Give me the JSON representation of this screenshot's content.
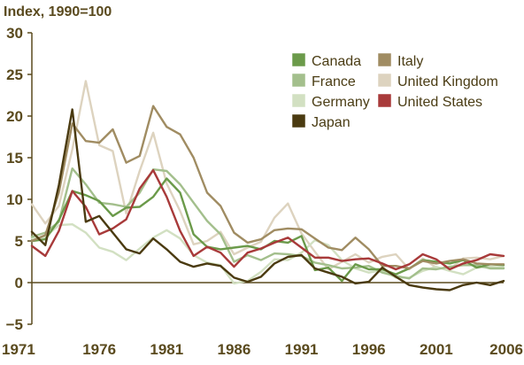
{
  "chart_data": {
    "type": "line",
    "title": "Index, 1990=100",
    "xlabel": "",
    "ylabel": "",
    "xlim": [
      1971,
      2006
    ],
    "ylim": [
      -5,
      30
    ],
    "x": [
      1971,
      1972,
      1973,
      1974,
      1975,
      1976,
      1977,
      1978,
      1979,
      1980,
      1981,
      1982,
      1983,
      1984,
      1985,
      1986,
      1987,
      1988,
      1989,
      1990,
      1991,
      1992,
      1993,
      1994,
      1995,
      1996,
      1997,
      1998,
      1999,
      2000,
      2001,
      2002,
      2003,
      2004,
      2005,
      2006
    ],
    "x_ticks": [
      1971,
      1976,
      1981,
      1986,
      1991,
      1996,
      2001,
      2006
    ],
    "y_ticks": [
      -5,
      0,
      5,
      10,
      15,
      20,
      25,
      30
    ],
    "grid": false,
    "legend_position": "top-right",
    "series": [
      {
        "name": "Canada",
        "color": "#6b9a4a",
        "values": [
          5,
          5.2,
          7.5,
          11,
          10.5,
          9.8,
          8,
          9,
          9.1,
          10.3,
          12.5,
          10.8,
          5.8,
          4.3,
          4,
          4.2,
          4.4,
          4,
          5,
          4.8,
          5.6,
          1.5,
          1.8,
          0.2,
          2.2,
          1.6,
          1.6,
          1,
          1.7,
          2.7,
          2.5,
          2.3,
          2.7,
          1.8,
          2.2,
          2.1
        ]
      },
      {
        "name": "France",
        "color": "#a3bf8c",
        "values": [
          5.5,
          6,
          7.3,
          13.7,
          11.8,
          9.6,
          9.4,
          9.1,
          10.8,
          13.6,
          13.4,
          11.8,
          9.6,
          7.4,
          5.8,
          2.5,
          3.3,
          2.7,
          3.5,
          3.4,
          3.2,
          2.4,
          2.1,
          1.7,
          1.8,
          2,
          1.2,
          0.8,
          0.5,
          1.7,
          1.6,
          1.9,
          2.1,
          2.1,
          1.7,
          1.7
        ]
      },
      {
        "name": "Germany",
        "color": "#d2e0c2",
        "values": [
          5.3,
          5.5,
          6.9,
          7,
          6,
          4.2,
          3.7,
          2.7,
          4.1,
          5.4,
          6.3,
          5.3,
          3.3,
          2.4,
          2.1,
          -0.1,
          0.2,
          1.3,
          2.8,
          2.7,
          3.6,
          5.1,
          4.5,
          2.7,
          1.7,
          1.2,
          1.5,
          0.6,
          0.6,
          1.4,
          1.9,
          1.4,
          1,
          1.8,
          1.9,
          1.8
        ]
      },
      {
        "name": "Japan",
        "color": "#4a3a10",
        "values": [
          6.1,
          4.5,
          11.7,
          20.8,
          7.3,
          8,
          6,
          4,
          3.5,
          5.3,
          4,
          2.5,
          1.9,
          2.3,
          2,
          0.6,
          0.1,
          0.7,
          2.3,
          3.1,
          3.3,
          1.7,
          1.2,
          0.7,
          -0.1,
          0.1,
          1.8,
          0.7,
          -0.3,
          -0.6,
          -0.8,
          -0.9,
          -0.3,
          0,
          -0.3,
          0.2
        ]
      },
      {
        "name": "Italy",
        "color": "#a08c62",
        "values": [
          5,
          5.7,
          10.8,
          19.1,
          17,
          16.8,
          18.4,
          14.4,
          15.2,
          21.2,
          18.7,
          17.8,
          15,
          10.8,
          9.2,
          6,
          4.8,
          5.2,
          6.3,
          6.5,
          6.4,
          5.3,
          4.2,
          3.9,
          5.4,
          4,
          2,
          2,
          1.7,
          2.6,
          2.3,
          2.6,
          2.8,
          2.3,
          2.2,
          2.2
        ]
      },
      {
        "name": "United Kingdom",
        "color": "#ddd3bf",
        "values": [
          9.4,
          7.1,
          9.2,
          16,
          24.2,
          16.5,
          15.8,
          8.3,
          13.4,
          18,
          11.9,
          8.6,
          4.6,
          5,
          6.1,
          3.4,
          4.2,
          4.9,
          7.8,
          9.5,
          5.9,
          3.7,
          1.6,
          2.5,
          3.4,
          2.4,
          3.1,
          3.4,
          1.6,
          2.9,
          1.8,
          1.6,
          2.9,
          3,
          2.8,
          3.2
        ]
      },
      {
        "name": "United States",
        "color": "#a83a3a",
        "values": [
          4.4,
          3.2,
          6.2,
          11,
          9.1,
          5.8,
          6.5,
          7.6,
          11.3,
          13.5,
          10.3,
          6.2,
          3.2,
          4.3,
          3.6,
          1.9,
          3.6,
          4.1,
          4.8,
          5.4,
          4.2,
          3,
          3,
          2.6,
          2.8,
          2.9,
          2.3,
          1.6,
          2.2,
          3.4,
          2.8,
          1.6,
          2.3,
          2.7,
          3.4,
          3.2
        ]
      }
    ]
  }
}
